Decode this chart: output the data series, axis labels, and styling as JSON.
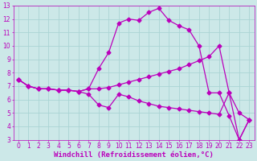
{
  "xlabel": "Windchill (Refroidissement éolien,°C)",
  "ylabel": "",
  "background_color": "#cce8e8",
  "grid_color": "#aad4d4",
  "line_color": "#bb00bb",
  "xlim": [
    -0.5,
    23.5
  ],
  "ylim": [
    3,
    13
  ],
  "xticks": [
    0,
    1,
    2,
    3,
    4,
    5,
    6,
    7,
    8,
    9,
    10,
    11,
    12,
    13,
    14,
    15,
    16,
    17,
    18,
    19,
    20,
    21,
    22,
    23
  ],
  "yticks": [
    3,
    4,
    5,
    6,
    7,
    8,
    9,
    10,
    11,
    12,
    13
  ],
  "line1_x": [
    0,
    1,
    2,
    3,
    4,
    5,
    6,
    7,
    8,
    9,
    10,
    11,
    12,
    13,
    14,
    15,
    16,
    17,
    18,
    19,
    20,
    21,
    22,
    23
  ],
  "line1_y": [
    7.5,
    7.0,
    6.8,
    6.8,
    6.7,
    6.7,
    6.6,
    6.4,
    5.6,
    5.4,
    6.4,
    6.2,
    5.9,
    5.7,
    5.5,
    5.4,
    5.3,
    5.2,
    5.1,
    5.0,
    4.9,
    6.5,
    3.0,
    4.5
  ],
  "line2_x": [
    0,
    1,
    2,
    3,
    4,
    5,
    6,
    7,
    8,
    9,
    10,
    11,
    12,
    13,
    14,
    15,
    16,
    17,
    18,
    19,
    20,
    21,
    22,
    23
  ],
  "line2_y": [
    7.5,
    7.0,
    6.8,
    6.8,
    6.7,
    6.7,
    6.6,
    6.8,
    8.3,
    9.5,
    11.7,
    12.0,
    11.9,
    12.5,
    12.8,
    11.9,
    11.5,
    11.2,
    10.0,
    6.5,
    6.5,
    4.8,
    3.0,
    4.5
  ],
  "line3_x": [
    0,
    1,
    2,
    3,
    4,
    5,
    6,
    7,
    8,
    9,
    10,
    11,
    12,
    13,
    14,
    15,
    16,
    17,
    18,
    19,
    20,
    21,
    22,
    23
  ],
  "line3_y": [
    7.5,
    7.0,
    6.8,
    6.8,
    6.7,
    6.7,
    6.6,
    6.8,
    6.8,
    6.9,
    7.1,
    7.3,
    7.5,
    7.7,
    7.9,
    8.1,
    8.3,
    8.6,
    8.9,
    9.2,
    10.0,
    6.5,
    5.0,
    4.5
  ],
  "marker": "D",
  "markersize": 2.5,
  "linewidth": 0.9,
  "tick_fontsize": 5.5,
  "label_fontsize": 6.5
}
